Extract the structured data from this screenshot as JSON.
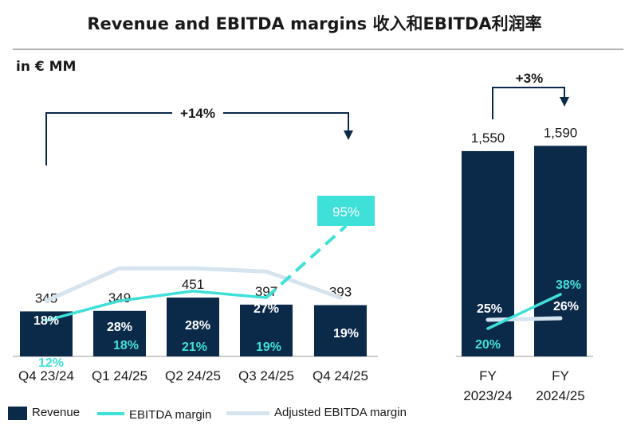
{
  "title": "Revenue and EBITDA margins 收入和EBITDA利润率",
  "unit_label": "in € MM",
  "colors": {
    "revenue": "#0b2a4a",
    "ebitda": "#3fe0d8",
    "adjusted": "#d6e4f0",
    "bar_text": "#ffffff"
  },
  "chart_data": [
    {
      "type": "bar",
      "name_label": "quarterly",
      "categories": [
        "Q4 23/24",
        "Q1 24/25",
        "Q2 24/25",
        "Q3 24/25",
        "Q4 24/25"
      ],
      "series": [
        {
          "name": "Revenue",
          "values": [
            345,
            349,
            451,
            397,
            393
          ]
        },
        {
          "name": "EBITDA margin",
          "values": [
            12,
            18,
            21,
            19,
            95
          ],
          "labels": [
            "12%",
            "18%",
            "21%",
            "19%",
            "95%"
          ]
        },
        {
          "name": "Adjusted EBITDA margin",
          "values": [
            18,
            28,
            28,
            27,
            19
          ],
          "labels": [
            "18%",
            "28%",
            "28%",
            "27%",
            "19%"
          ]
        }
      ],
      "revenue_labels": [
        "345",
        "349",
        "451",
        "397",
        "393"
      ],
      "growth_annotation": "+14%"
    },
    {
      "type": "bar",
      "categories": [
        "FY 2023/24",
        "FY 2024/25"
      ],
      "category_lines": [
        [
          "FY",
          "2023/24"
        ],
        [
          "FY",
          "2024/25"
        ]
      ],
      "series": [
        {
          "name": "Revenue",
          "values": [
            1550,
            1590
          ]
        },
        {
          "name": "EBITDA margin",
          "values": [
            20,
            38
          ],
          "labels": [
            "20%",
            "38%"
          ]
        },
        {
          "name": "Adjusted EBITDA margin",
          "values": [
            25,
            26
          ],
          "labels": [
            "25%",
            "26%"
          ]
        }
      ],
      "revenue_labels": [
        "1,550",
        "1,590"
      ],
      "growth_annotation": "+3%"
    }
  ],
  "legend": {
    "revenue": "Revenue",
    "ebitda": "EBITDA margin",
    "adjusted": "Adjusted EBITDA margin"
  }
}
